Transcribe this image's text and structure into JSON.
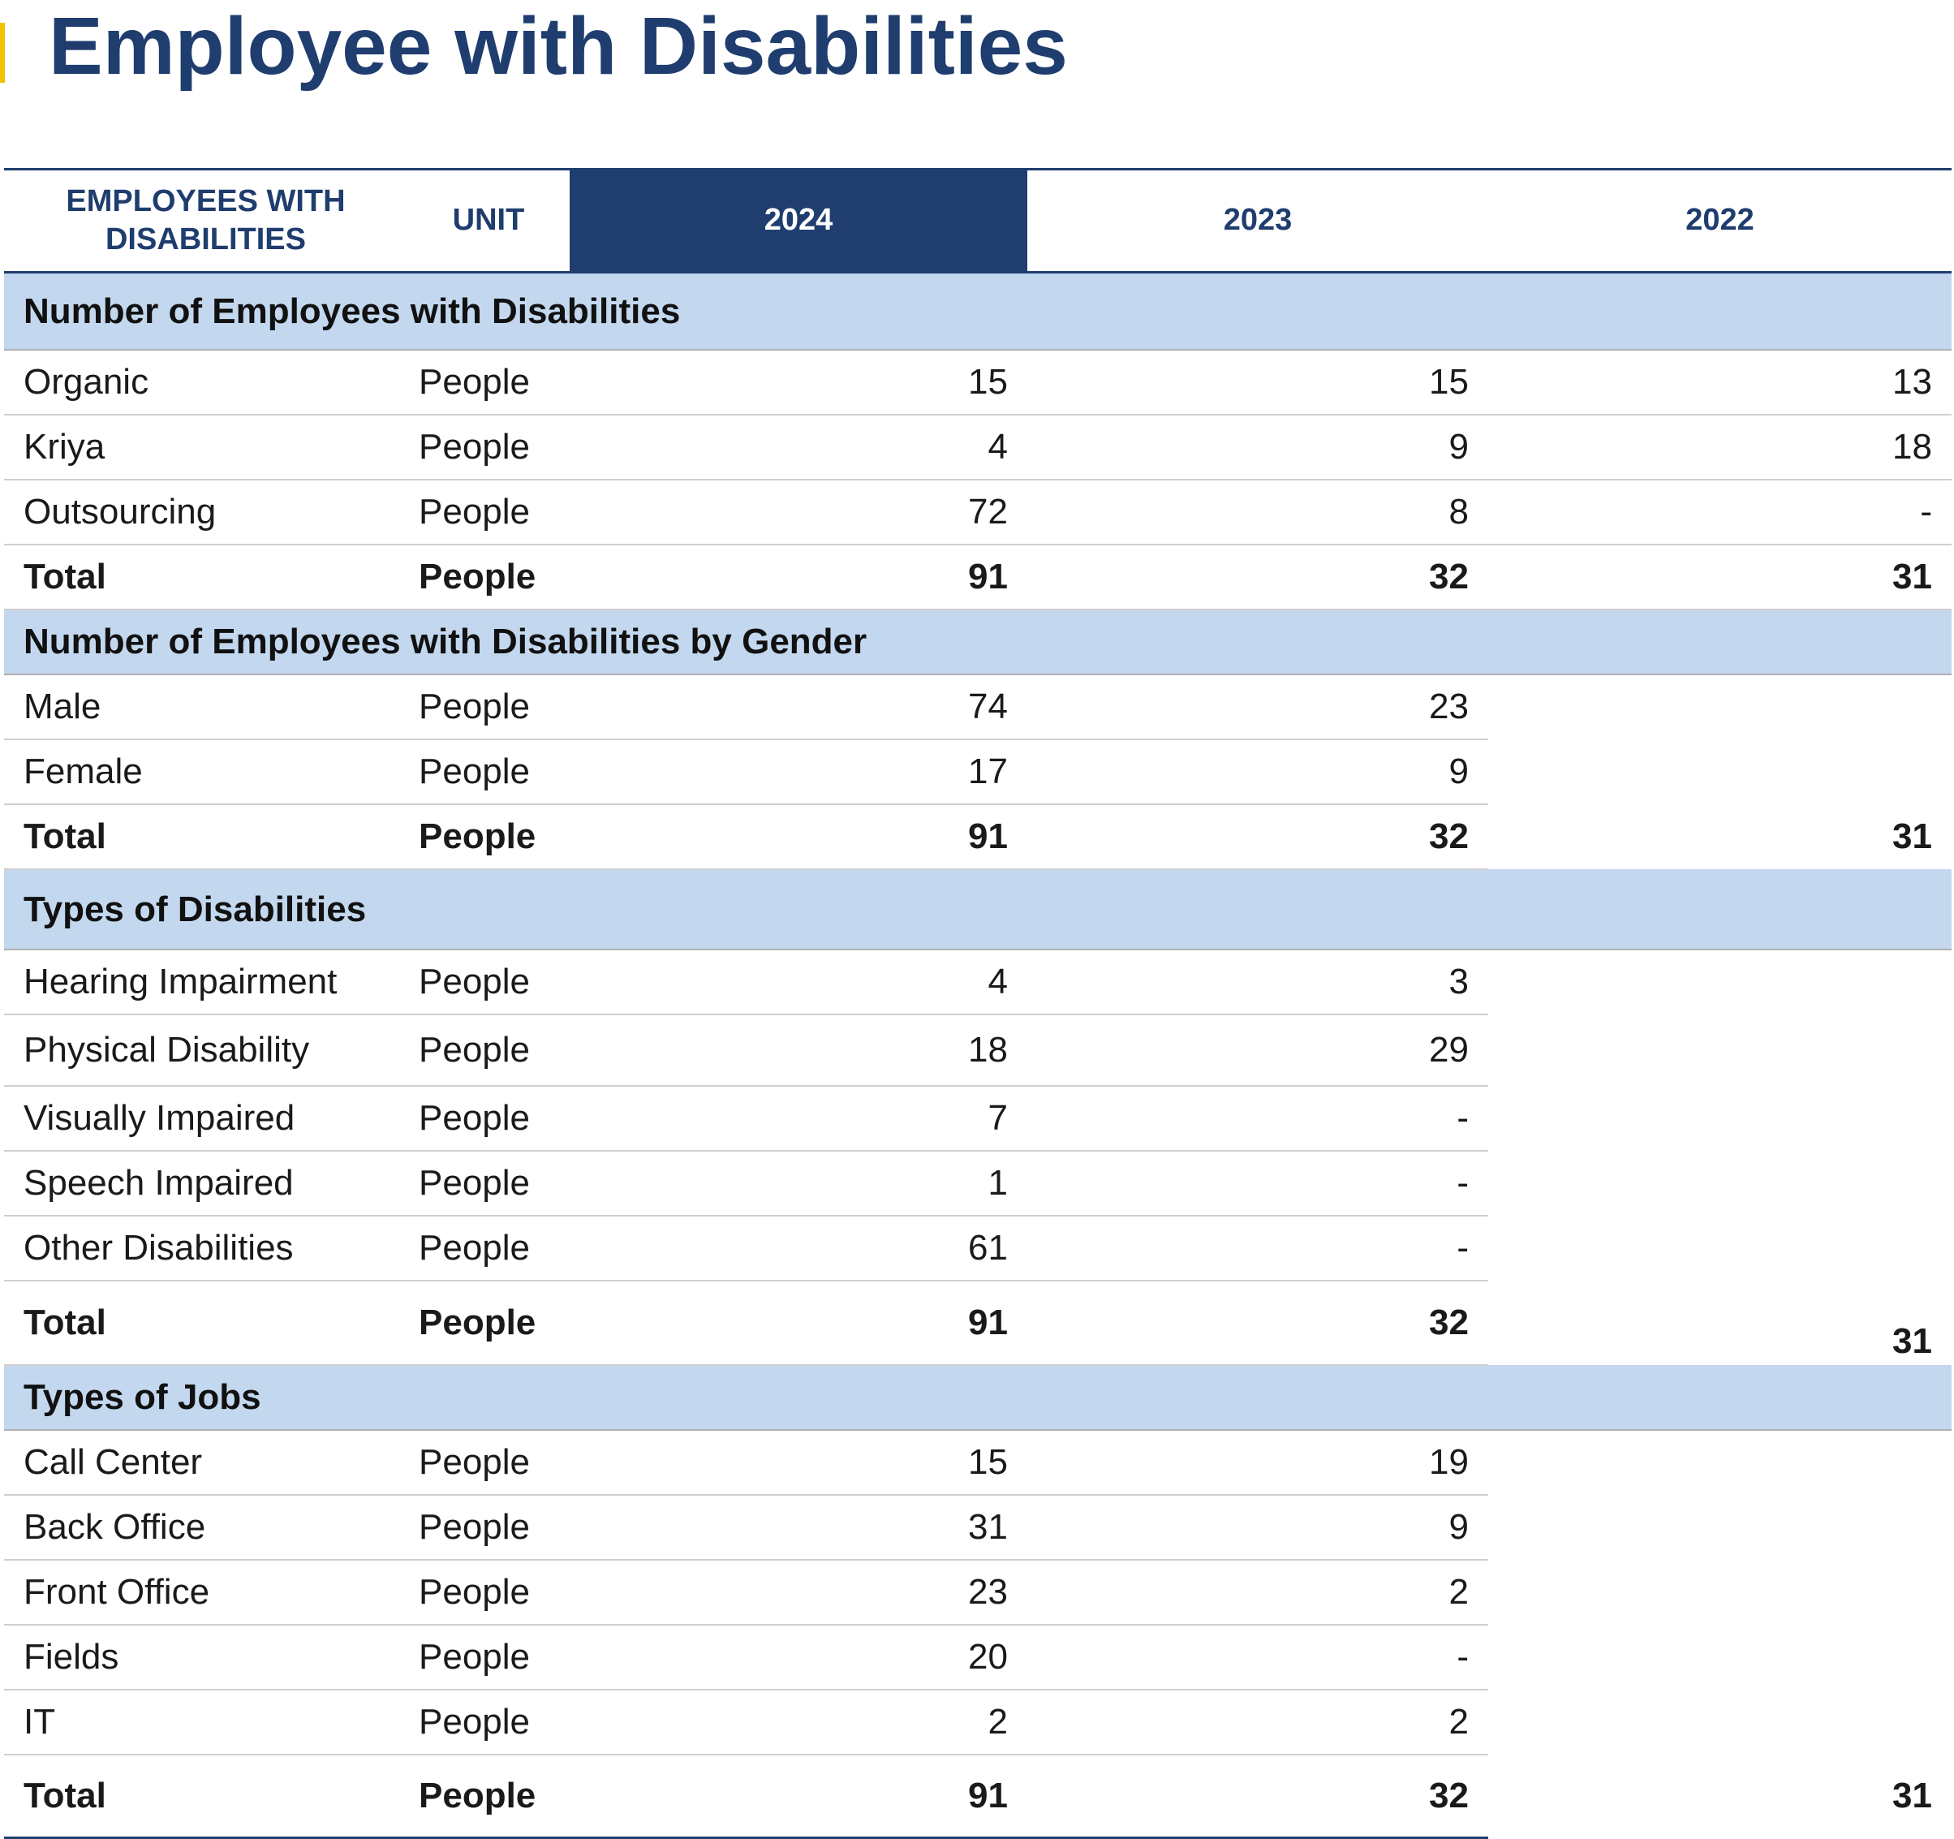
{
  "page": {
    "title": "Employee with Disabilities"
  },
  "colors": {
    "navy": "#1f3d6e",
    "section_bg": "#c3d8ef",
    "accent": "#f2c200"
  },
  "table": {
    "headers": {
      "label": "EMPLOYEES WITH DISABILITIES",
      "unit": "UNIT",
      "y2024": "2024",
      "y2023": "2023",
      "y2022": "2022"
    },
    "sections": [
      {
        "title": "Number of Employees with Disabilities",
        "rows": [
          {
            "label": "Organic",
            "unit": "People",
            "y2024": "15",
            "y2023": "15",
            "y2022": "13"
          },
          {
            "label": "Kriya",
            "unit": "People",
            "y2024": "4",
            "y2023": "9",
            "y2022": "18"
          },
          {
            "label": "Outsourcing",
            "unit": "People",
            "y2024": "72",
            "y2023": "8",
            "y2022": "-"
          }
        ],
        "total": {
          "label": "Total",
          "unit": "People",
          "y2024": "91",
          "y2023": "32",
          "y2022": "31"
        }
      },
      {
        "title": "Number of Employees with Disabilities by Gender",
        "rows": [
          {
            "label": "Male",
            "unit": "People",
            "y2024": "74",
            "y2023": "23",
            "y2022": ""
          },
          {
            "label": "Female",
            "unit": "People",
            "y2024": "17",
            "y2023": "9",
            "y2022": ""
          }
        ],
        "total": {
          "label": "Total",
          "unit": "People",
          "y2024": "91",
          "y2023": "32",
          "y2022": "31"
        }
      },
      {
        "title": "Types of Disabilities",
        "rows": [
          {
            "label": "Hearing Impairment",
            "unit": "People",
            "y2024": "4",
            "y2023": "3",
            "y2022": ""
          },
          {
            "label": "Physical Disability",
            "unit": "People",
            "y2024": "18",
            "y2023": "29",
            "y2022": ""
          },
          {
            "label": "Visually Impaired",
            "unit": "People",
            "y2024": "7",
            "y2023": "-",
            "y2022": ""
          },
          {
            "label": "Speech Impaired",
            "unit": "People",
            "y2024": "1",
            "y2023": "-",
            "y2022": ""
          },
          {
            "label": "Other Disabilities",
            "unit": "People",
            "y2024": "61",
            "y2023": "-",
            "y2022": ""
          }
        ],
        "total": {
          "label": "Total",
          "unit": "People",
          "y2024": "91",
          "y2023": "32",
          "y2022": "31"
        }
      },
      {
        "title": "Types of Jobs",
        "rows": [
          {
            "label": "Call Center",
            "unit": "People",
            "y2024": "15",
            "y2023": "19",
            "y2022": ""
          },
          {
            "label": "Back Office",
            "unit": "People",
            "y2024": "31",
            "y2023": "9",
            "y2022": ""
          },
          {
            "label": "Front Office",
            "unit": "People",
            "y2024": "23",
            "y2023": "2",
            "y2022": ""
          },
          {
            "label": "Fields",
            "unit": "People",
            "y2024": "20",
            "y2023": "-",
            "y2022": ""
          },
          {
            "label": "IT",
            "unit": "People",
            "y2024": "2",
            "y2023": "2",
            "y2022": ""
          }
        ],
        "total": {
          "label": "Total",
          "unit": "People",
          "y2024": "91",
          "y2023": "32",
          "y2022": "31"
        }
      }
    ]
  }
}
